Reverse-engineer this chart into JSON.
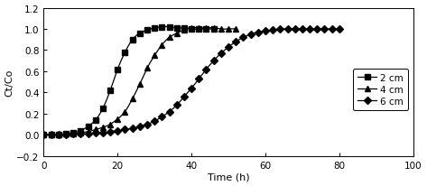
{
  "title": "",
  "xlabel": "Time (h)",
  "ylabel": "Ct/Co",
  "xlim": [
    0,
    100
  ],
  "ylim": [
    -0.2,
    1.2
  ],
  "xticks": [
    0,
    20,
    40,
    60,
    80,
    100
  ],
  "yticks": [
    -0.2,
    0.0,
    0.2,
    0.4,
    0.6,
    0.8,
    1.0,
    1.2
  ],
  "line_color": "#000000",
  "legend_labels": [
    "2 cm",
    "4 cm",
    "6 cm"
  ],
  "legend_markers": [
    "s",
    "^",
    "D"
  ],
  "series_2cm_x": [
    0,
    2,
    4,
    6,
    8,
    10,
    12,
    14,
    16,
    18,
    20,
    22,
    24,
    26,
    28,
    30,
    32,
    34,
    36,
    38,
    40,
    42,
    44,
    46
  ],
  "series_2cm_y": [
    0.0,
    0.0,
    0.0,
    0.01,
    0.02,
    0.04,
    0.08,
    0.14,
    0.25,
    0.42,
    0.62,
    0.78,
    0.9,
    0.96,
    0.99,
    1.01,
    1.02,
    1.02,
    1.01,
    1.01,
    1.0,
    1.0,
    1.0,
    1.0
  ],
  "series_4cm_x": [
    0,
    2,
    4,
    6,
    8,
    10,
    12,
    14,
    16,
    18,
    20,
    22,
    24,
    26,
    28,
    30,
    32,
    34,
    36,
    38,
    40,
    42,
    44,
    46,
    48,
    50,
    52
  ],
  "series_4cm_y": [
    0.0,
    0.0,
    0.0,
    0.01,
    0.01,
    0.02,
    0.03,
    0.05,
    0.07,
    0.1,
    0.15,
    0.22,
    0.34,
    0.48,
    0.63,
    0.75,
    0.85,
    0.92,
    0.96,
    0.99,
    1.01,
    1.01,
    1.01,
    1.01,
    1.0,
    1.0,
    1.0
  ],
  "series_6cm_x": [
    0,
    2,
    4,
    6,
    8,
    10,
    12,
    14,
    16,
    18,
    20,
    22,
    24,
    26,
    28,
    30,
    32,
    34,
    36,
    38,
    40,
    42,
    44,
    46,
    48,
    50,
    52,
    54,
    56,
    58,
    60,
    62,
    64,
    66,
    68,
    70,
    72,
    74,
    76,
    78,
    80
  ],
  "series_6cm_y": [
    0.0,
    0.0,
    0.0,
    0.0,
    0.01,
    0.01,
    0.01,
    0.02,
    0.02,
    0.03,
    0.04,
    0.05,
    0.06,
    0.08,
    0.1,
    0.13,
    0.17,
    0.22,
    0.28,
    0.36,
    0.44,
    0.53,
    0.62,
    0.7,
    0.77,
    0.83,
    0.88,
    0.92,
    0.95,
    0.97,
    0.98,
    0.99,
    1.0,
    1.0,
    1.0,
    1.0,
    1.0,
    1.0,
    1.0,
    1.0,
    1.0
  ],
  "figsize": [
    4.73,
    2.07
  ],
  "dpi": 100
}
